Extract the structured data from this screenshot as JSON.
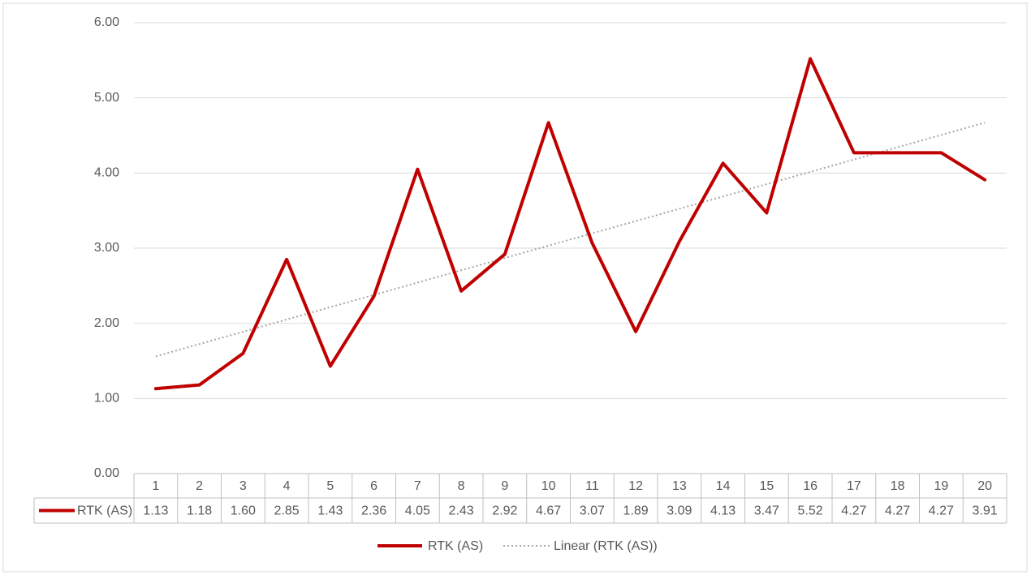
{
  "chart_data": {
    "type": "line",
    "categories": [
      "1",
      "2",
      "3",
      "4",
      "5",
      "6",
      "7",
      "8",
      "9",
      "10",
      "11",
      "12",
      "13",
      "14",
      "15",
      "16",
      "17",
      "18",
      "19",
      "20"
    ],
    "series": [
      {
        "name": "RTK (AS)",
        "color": "#c00000",
        "values": [
          1.13,
          1.18,
          1.6,
          2.85,
          1.43,
          2.36,
          4.05,
          2.43,
          2.92,
          4.67,
          3.07,
          1.89,
          3.09,
          4.13,
          3.47,
          5.52,
          4.27,
          4.27,
          4.27,
          3.91
        ],
        "value_labels": [
          "1.13",
          "1.18",
          "1.60",
          "2.85",
          "1.43",
          "2.36",
          "4.05",
          "2.43",
          "2.92",
          "4.67",
          "3.07",
          "1.89",
          "3.09",
          "4.13",
          "3.47",
          "5.52",
          "4.27",
          "4.27",
          "4.27",
          "3.91"
        ]
      }
    ],
    "trendline": {
      "name": "Linear (RTK (AS))",
      "color": "#a6a6a6",
      "values": [
        1.56,
        4.67
      ]
    },
    "ylim": [
      0,
      6
    ],
    "yticks": [
      {
        "value": 0,
        "label": "0.00"
      },
      {
        "value": 1,
        "label": "1.00"
      },
      {
        "value": 2,
        "label": "2.00"
      },
      {
        "value": 3,
        "label": "3.00"
      },
      {
        "value": 4,
        "label": "4.00"
      },
      {
        "value": 5,
        "label": "5.00"
      },
      {
        "value": 6,
        "label": "6.00"
      }
    ],
    "grid": true,
    "legend": "bottom",
    "data_table": true
  }
}
